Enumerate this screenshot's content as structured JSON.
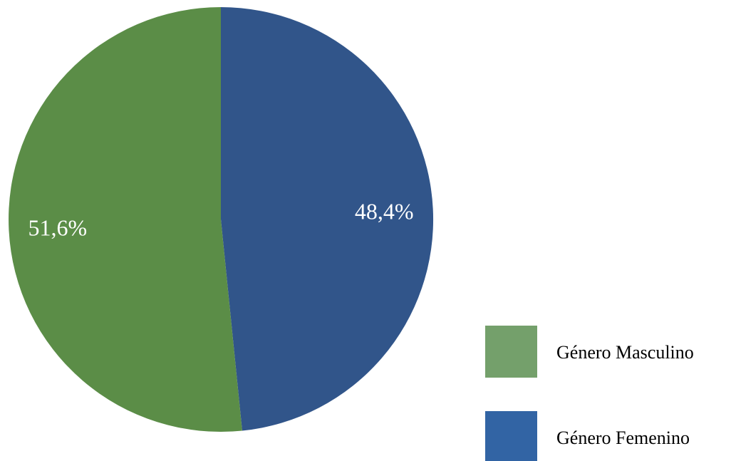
{
  "chart_data": {
    "type": "pie",
    "categories": [
      "Género Masculino",
      "Género Femenino"
    ],
    "values": [
      51.6,
      48.4
    ],
    "data_labels": [
      "51,6%",
      "48,4%"
    ],
    "slice_colors": [
      "#5b8d47",
      "#31558a"
    ],
    "legend_colors": [
      "#74a06b",
      "#3264a4"
    ],
    "legend": {
      "placement": "bottom-right",
      "entries": [
        "Género Masculino",
        "Género Femenino"
      ]
    },
    "start": "top",
    "direction": "clockwise",
    "first_slice_index": 1
  }
}
